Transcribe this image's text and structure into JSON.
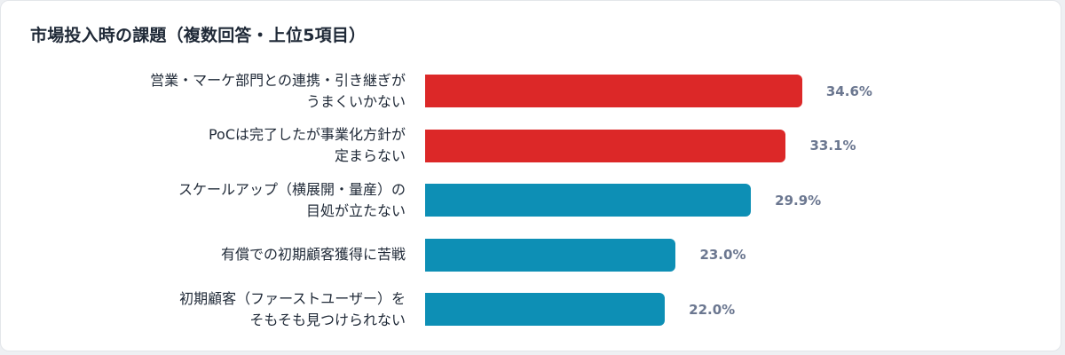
{
  "chart_data": {
    "type": "bar",
    "orientation": "horizontal",
    "title": "市場投入時の課題（複数回答・上位5項目）",
    "categories": [
      [
        "営業・マーケ部門との連携・引き継ぎが",
        "うまくいかない"
      ],
      [
        "PoCは完了したが事業化方針が",
        "定まらない"
      ],
      [
        "スケールアップ（横展開・量産）の",
        "目処が立たない"
      ],
      [
        "有償での初期顧客獲得に苦戦"
      ],
      [
        "初期顧客（ファーストユーザー）を",
        "そもそも見つけられない"
      ]
    ],
    "values": [
      34.6,
      33.1,
      29.9,
      23.0,
      22.0
    ],
    "value_labels": [
      "34.6%",
      "33.1%",
      "29.9%",
      "23.0%",
      "22.0%"
    ],
    "xlim": [
      0,
      40
    ],
    "grid": false,
    "colors": {
      "highlight": "#dc2828",
      "default": "#0d8fb5",
      "value_text": "#6b7790"
    },
    "highlight_top_n": 2
  }
}
